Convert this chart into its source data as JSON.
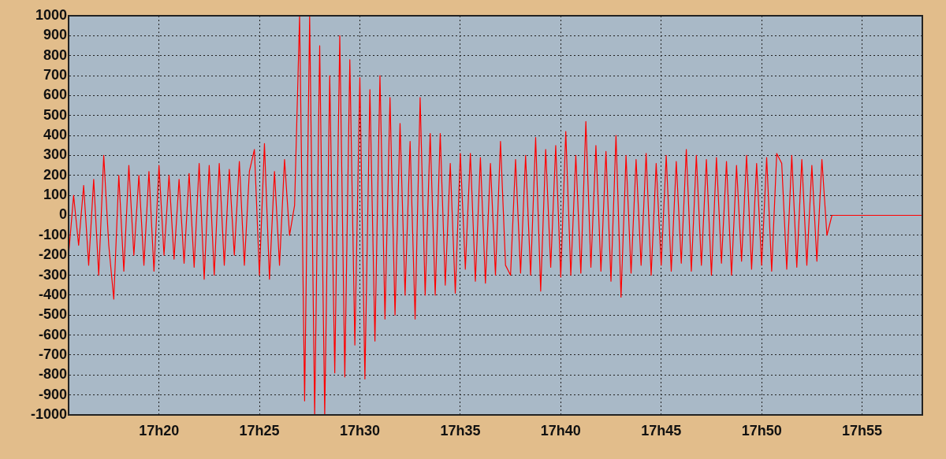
{
  "chart_data": {
    "type": "line",
    "color": "#ff0000",
    "marker": "none",
    "grid": true,
    "ylim": [
      -1000,
      1000
    ],
    "yticks": [
      -1000,
      -900,
      -800,
      -700,
      -600,
      -500,
      -400,
      -300,
      -200,
      -100,
      0,
      100,
      200,
      300,
      400,
      500,
      600,
      700,
      800,
      900,
      1000
    ],
    "categories": [
      null,
      null,
      null,
      null,
      null,
      null,
      null,
      null,
      null,
      null,
      null,
      null,
      null,
      null,
      null,
      null,
      null,
      null,
      "17h20",
      null,
      null,
      null,
      null,
      null,
      null,
      null,
      null,
      null,
      null,
      null,
      null,
      null,
      null,
      null,
      null,
      null,
      null,
      null,
      "17h25",
      null,
      null,
      null,
      null,
      null,
      null,
      null,
      null,
      null,
      null,
      null,
      null,
      null,
      null,
      null,
      null,
      null,
      null,
      null,
      "17h30",
      null,
      null,
      null,
      null,
      null,
      null,
      null,
      null,
      null,
      null,
      null,
      null,
      null,
      null,
      null,
      null,
      null,
      null,
      null,
      "17h35",
      null,
      null,
      null,
      null,
      null,
      null,
      null,
      null,
      null,
      null,
      null,
      null,
      null,
      null,
      null,
      null,
      null,
      null,
      null,
      "17h40",
      null,
      null,
      null,
      null,
      null,
      null,
      null,
      null,
      null,
      null,
      null,
      null,
      null,
      null,
      null,
      null,
      null,
      null,
      null,
      "17h45",
      null,
      null,
      null,
      null,
      null,
      null,
      null,
      null,
      null,
      null,
      null,
      null,
      null,
      null,
      null,
      null,
      null,
      null,
      null,
      "17h50",
      null,
      null,
      null,
      null,
      null,
      null,
      null,
      null,
      null,
      null,
      null,
      null,
      null,
      null,
      null,
      null,
      null,
      null,
      null,
      "17h55",
      null,
      null,
      null,
      null,
      null,
      null,
      null,
      null,
      null,
      null,
      null,
      null
    ],
    "values": [
      -200,
      100,
      -150,
      150,
      -250,
      180,
      -300,
      300,
      -150,
      -420,
      200,
      -280,
      250,
      -200,
      200,
      -250,
      220,
      -280,
      250,
      -200,
      200,
      -220,
      180,
      -240,
      210,
      -260,
      260,
      -320,
      250,
      -300,
      260,
      -250,
      230,
      -200,
      270,
      -250,
      220,
      330,
      -300,
      360,
      -320,
      220,
      -250,
      280,
      -100,
      50,
      1000,
      -930,
      1000,
      -1000,
      850,
      -1000,
      700,
      -790,
      900,
      -810,
      780,
      -650,
      690,
      -820,
      630,
      -630,
      700,
      -520,
      590,
      -500,
      460,
      -400,
      370,
      -520,
      590,
      -400,
      410,
      -400,
      410,
      -350,
      260,
      -390,
      310,
      -270,
      310,
      -330,
      290,
      -340,
      260,
      -300,
      370,
      -250,
      -300,
      280,
      -290,
      300,
      -300,
      390,
      -380,
      330,
      -260,
      350,
      -310,
      420,
      -300,
      300,
      -290,
      470,
      -260,
      350,
      -280,
      320,
      -330,
      400,
      -410,
      300,
      -290,
      280,
      -250,
      310,
      -300,
      260,
      -250,
      300,
      -280,
      270,
      -240,
      330,
      -280,
      300,
      -250,
      280,
      -300,
      290,
      -240,
      270,
      -300,
      250,
      -230,
      300,
      -270,
      260,
      -250,
      290,
      -280,
      310,
      260,
      -270,
      300,
      -260,
      280,
      -250,
      250,
      -230,
      280,
      -100,
      0,
      0,
      0,
      0,
      0,
      0,
      0,
      0,
      0,
      0,
      0,
      0,
      0,
      0,
      0,
      0,
      0,
      0,
      0
    ]
  }
}
